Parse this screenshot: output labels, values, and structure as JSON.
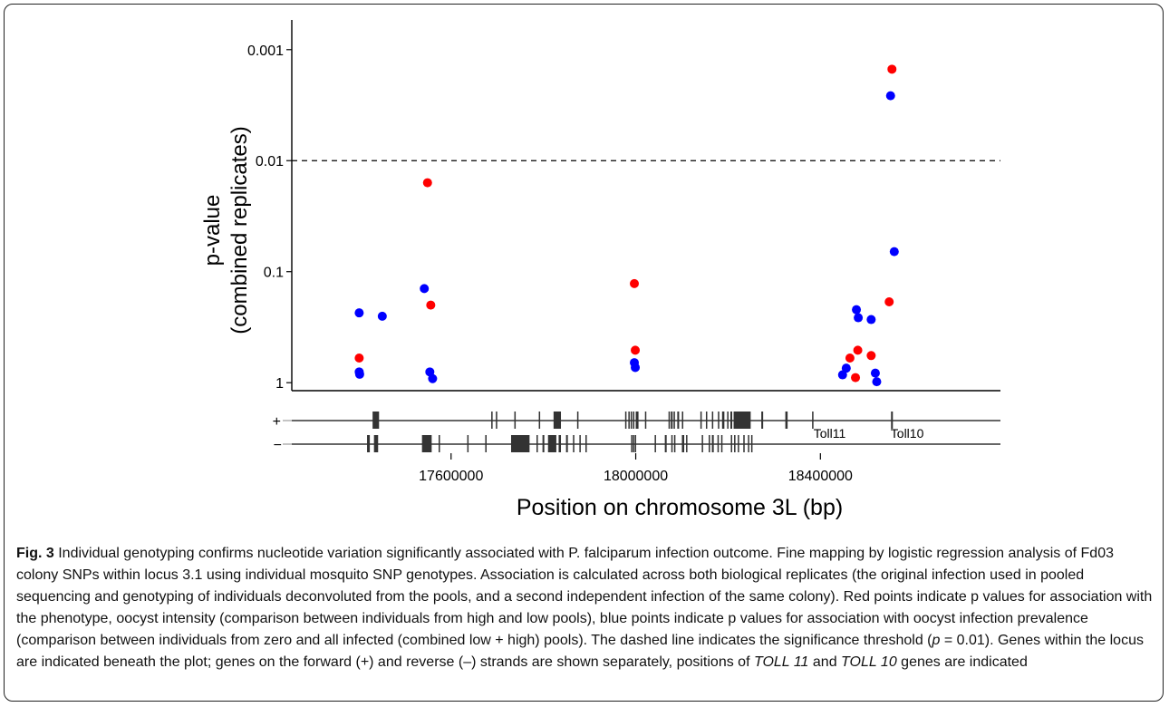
{
  "chart_data": {
    "type": "scatter",
    "title": "",
    "xlabel": "Position on chromosome 3L (bp)",
    "ylabel_line1": "p-value",
    "ylabel_line2": "(combined replicates)",
    "y_scale": "log, reversed (smaller p-values plotted higher)",
    "xlim": [
      17255000,
      18790000
    ],
    "ylim": [
      1.18,
      0.00054
    ],
    "x_ticks": [
      {
        "value": 17600000,
        "label": "17600000"
      },
      {
        "value": 18000000,
        "label": "18000000"
      },
      {
        "value": 18400000,
        "label": "18400000"
      }
    ],
    "y_ticks": [
      {
        "value": 1,
        "label": "1"
      },
      {
        "value": 0.1,
        "label": "0.1"
      },
      {
        "value": 0.01,
        "label": "0.01"
      },
      {
        "value": 0.001,
        "label": "0.001"
      }
    ],
    "threshold": {
      "value": 0.01,
      "style": "dashed"
    },
    "grid": false,
    "legend": "none",
    "series": [
      {
        "color": "#ff0000",
        "meaning": "oocyst intensity",
        "points": [
          {
            "x": 17401000,
            "y": 0.6
          },
          {
            "x": 17549000,
            "y": 0.0158
          },
          {
            "x": 17556000,
            "y": 0.2
          },
          {
            "x": 17997000,
            "y": 0.128
          },
          {
            "x": 17999000,
            "y": 0.51
          },
          {
            "x": 18464000,
            "y": 0.6
          },
          {
            "x": 18476000,
            "y": 0.9
          },
          {
            "x": 18481000,
            "y": 0.51
          },
          {
            "x": 18510000,
            "y": 0.57
          },
          {
            "x": 18555000,
            "y": 0.0015
          },
          {
            "x": 18549000,
            "y": 0.187
          }
        ]
      },
      {
        "color": "#0000ff",
        "meaning": "oocyst infection prevalence",
        "points": [
          {
            "x": 17401000,
            "y": 0.235
          },
          {
            "x": 17401000,
            "y": 0.8
          },
          {
            "x": 17402000,
            "y": 0.84
          },
          {
            "x": 17451000,
            "y": 0.252
          },
          {
            "x": 17542000,
            "y": 0.142
          },
          {
            "x": 17554000,
            "y": 0.8
          },
          {
            "x": 17560000,
            "y": 0.92
          },
          {
            "x": 17997000,
            "y": 0.66
          },
          {
            "x": 17999000,
            "y": 0.73
          },
          {
            "x": 18448000,
            "y": 0.85
          },
          {
            "x": 18456000,
            "y": 0.74
          },
          {
            "x": 18478000,
            "y": 0.22
          },
          {
            "x": 18482000,
            "y": 0.26
          },
          {
            "x": 18510000,
            "y": 0.27
          },
          {
            "x": 18519000,
            "y": 0.82
          },
          {
            "x": 18522000,
            "y": 0.98
          },
          {
            "x": 18552000,
            "y": 0.0026
          },
          {
            "x": 18560000,
            "y": 0.066
          }
        ]
      }
    ]
  },
  "gene_track": {
    "forward_label": "+",
    "reverse_label": "−",
    "gene_labels": [
      {
        "text": "Toll11",
        "x": 18420000
      },
      {
        "text": "Toll10",
        "x": 18588000
      }
    ],
    "forward_genes": [
      [
        17430000,
        17444000
      ],
      [
        17687000,
        17690000
      ],
      [
        17697000,
        17700000
      ],
      [
        17737000,
        17740000
      ],
      [
        17790000,
        17793000
      ],
      [
        17822000,
        17838000
      ],
      [
        17873000,
        17876000
      ],
      [
        17977000,
        17980000
      ],
      [
        17984000,
        17987000
      ],
      [
        17989000,
        17992000
      ],
      [
        17994000,
        17997000
      ],
      [
        18000000,
        18006000
      ],
      [
        18020000,
        18022000
      ],
      [
        18071000,
        18073000
      ],
      [
        18076000,
        18080000
      ],
      [
        18082000,
        18085000
      ],
      [
        18090000,
        18094000
      ],
      [
        18100000,
        18103000
      ],
      [
        18140000,
        18143000
      ],
      [
        18152000,
        18154000
      ],
      [
        18165000,
        18167000
      ],
      [
        18178000,
        18181000
      ],
      [
        18187000,
        18192000
      ],
      [
        18198000,
        18201000
      ],
      [
        18205000,
        18209000
      ],
      [
        18212000,
        18249000
      ],
      [
        18272000,
        18276000
      ],
      [
        18324000,
        18329000
      ],
      [
        18382000,
        18385000
      ],
      [
        18553000,
        18557000
      ]
    ],
    "reverse_genes": [
      [
        17418000,
        17424000
      ],
      [
        17433000,
        17442000
      ],
      [
        17537000,
        17558000
      ],
      [
        17573000,
        17576000
      ],
      [
        17635000,
        17637000
      ],
      [
        17674000,
        17677000
      ],
      [
        17730000,
        17770000
      ],
      [
        17785000,
        17788000
      ],
      [
        17798000,
        17802000
      ],
      [
        17810000,
        17828000
      ],
      [
        17833000,
        17838000
      ],
      [
        17849000,
        17853000
      ],
      [
        17864000,
        17867000
      ],
      [
        17878000,
        17880000
      ],
      [
        17891000,
        17894000
      ],
      [
        17990000,
        17992000
      ],
      [
        17994000,
        17996000
      ],
      [
        17998000,
        18000000
      ],
      [
        18041000,
        18043000
      ],
      [
        18063000,
        18067000
      ],
      [
        18077000,
        18079000
      ],
      [
        18083000,
        18086000
      ],
      [
        18100000,
        18105000
      ],
      [
        18109000,
        18111000
      ],
      [
        18143000,
        18145000
      ],
      [
        18158000,
        18160000
      ],
      [
        18165000,
        18169000
      ],
      [
        18177000,
        18180000
      ],
      [
        18185000,
        18187000
      ],
      [
        18206000,
        18208000
      ],
      [
        18213000,
        18216000
      ],
      [
        18221000,
        18223000
      ],
      [
        18233000,
        18236000
      ],
      [
        18243000,
        18245000
      ],
      [
        18250000,
        18252000
      ]
    ]
  },
  "caption": {
    "label": "Fig. 3",
    "part1": " Individual genotyping confirms nucleotide variation significantly associated with P. falciparum infection outcome. Fine mapping by logistic regression analysis of Fd03 colony SNPs within locus 3.1 using individual mosquito SNP genotypes. Association is calculated across both biological replicates (the original infection used in pooled sequencing and genotyping of individuals deconvoluted from the pools, and a second independent infection of the same colony). Red points indicate p values for association with the phenotype, oocyst intensity (comparison between individuals from high and low pools), blue points indicate p values for association with oocyst infection prevalence (comparison between individuals from zero and all infected (combined low + high) pools). The dashed line indicates the significance threshold (",
    "p_symbol": "p",
    "part2": " = 0.01). Genes within the locus are indicated beneath the plot; genes on the forward (+) and reverse (–) strands are shown separately, positions of ",
    "toll11": "TOLL 11",
    "part3": " and ",
    "toll10": "TOLL 10",
    "part4": " genes are indicated"
  }
}
